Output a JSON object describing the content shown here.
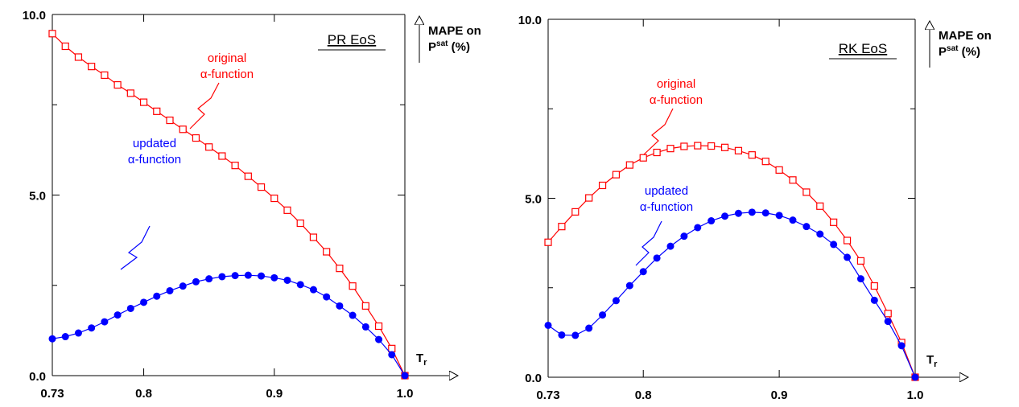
{
  "chart_data": [
    {
      "type": "line",
      "title": "PR EoS",
      "xlabel": "Tr",
      "ylabel": "MAPE on Psat (%)",
      "xlim": [
        0.73,
        1.0
      ],
      "ylim": [
        0,
        10
      ],
      "x_ticks": [
        "0.73",
        "0.8",
        "0.9",
        "1.0"
      ],
      "y_ticks": [
        "0.0",
        "5.0",
        "10.0"
      ],
      "grid": false,
      "series": [
        {
          "name": "original α-function",
          "color": "#ff0000",
          "marker": "open-square",
          "x": [
            0.73,
            0.74,
            0.75,
            0.76,
            0.77,
            0.78,
            0.79,
            0.8,
            0.81,
            0.82,
            0.83,
            0.84,
            0.85,
            0.86,
            0.87,
            0.88,
            0.89,
            0.9,
            0.91,
            0.92,
            0.93,
            0.94,
            0.95,
            0.96,
            0.97,
            0.98,
            0.99,
            1.0
          ],
          "values": [
            9.47,
            9.12,
            8.82,
            8.56,
            8.32,
            8.05,
            7.82,
            7.57,
            7.32,
            7.07,
            6.82,
            6.58,
            6.33,
            6.08,
            5.82,
            5.52,
            5.22,
            4.91,
            4.58,
            4.22,
            3.83,
            3.43,
            2.97,
            2.48,
            1.93,
            1.37,
            0.75,
            0.0
          ]
        },
        {
          "name": "updated α-function",
          "color": "#0000ff",
          "marker": "filled-circle",
          "x": [
            0.73,
            0.74,
            0.75,
            0.76,
            0.77,
            0.78,
            0.79,
            0.8,
            0.81,
            0.82,
            0.83,
            0.84,
            0.85,
            0.86,
            0.87,
            0.88,
            0.89,
            0.9,
            0.91,
            0.92,
            0.93,
            0.94,
            0.95,
            0.96,
            0.97,
            0.98,
            0.99,
            1.0
          ],
          "values": [
            1.02,
            1.08,
            1.18,
            1.32,
            1.49,
            1.68,
            1.86,
            2.03,
            2.2,
            2.35,
            2.48,
            2.6,
            2.68,
            2.74,
            2.77,
            2.78,
            2.76,
            2.71,
            2.64,
            2.52,
            2.38,
            2.18,
            1.93,
            1.67,
            1.35,
            1.0,
            0.58,
            0.0
          ]
        }
      ]
    },
    {
      "type": "line",
      "title": "RK EoS",
      "xlabel": "Tr",
      "ylabel": "MAPE on Psat (%)",
      "xlim": [
        0.73,
        1.0
      ],
      "ylim": [
        0,
        10
      ],
      "x_ticks": [
        "0.73",
        "0.8",
        "0.9",
        "1.0"
      ],
      "y_ticks": [
        "0.0",
        "5.0",
        "10.0"
      ],
      "grid": false,
      "series": [
        {
          "name": "original α-function",
          "color": "#ff0000",
          "marker": "open-square",
          "x": [
            0.73,
            0.74,
            0.75,
            0.76,
            0.77,
            0.78,
            0.79,
            0.8,
            0.81,
            0.82,
            0.83,
            0.84,
            0.85,
            0.86,
            0.87,
            0.88,
            0.89,
            0.9,
            0.91,
            0.92,
            0.93,
            0.94,
            0.95,
            0.96,
            0.97,
            0.98,
            0.99,
            1.0
          ],
          "values": [
            3.77,
            4.21,
            4.62,
            5.01,
            5.36,
            5.66,
            5.93,
            6.13,
            6.28,
            6.39,
            6.45,
            6.47,
            6.46,
            6.42,
            6.33,
            6.21,
            6.03,
            5.79,
            5.51,
            5.17,
            4.78,
            4.33,
            3.82,
            3.25,
            2.55,
            1.78,
            0.97,
            0.0
          ]
        },
        {
          "name": "updated α-function",
          "color": "#0000ff",
          "marker": "filled-circle",
          "x": [
            0.73,
            0.74,
            0.75,
            0.76,
            0.77,
            0.78,
            0.79,
            0.8,
            0.81,
            0.82,
            0.83,
            0.84,
            0.85,
            0.86,
            0.87,
            0.88,
            0.89,
            0.9,
            0.91,
            0.92,
            0.93,
            0.94,
            0.95,
            0.96,
            0.97,
            0.98,
            0.99,
            1.0
          ],
          "values": [
            1.45,
            1.18,
            1.17,
            1.37,
            1.74,
            2.14,
            2.56,
            2.95,
            3.33,
            3.66,
            3.94,
            4.18,
            4.37,
            4.5,
            4.58,
            4.61,
            4.59,
            4.52,
            4.39,
            4.21,
            4.0,
            3.71,
            3.35,
            2.75,
            2.15,
            1.56,
            0.88,
            0.0
          ]
        }
      ]
    }
  ]
}
